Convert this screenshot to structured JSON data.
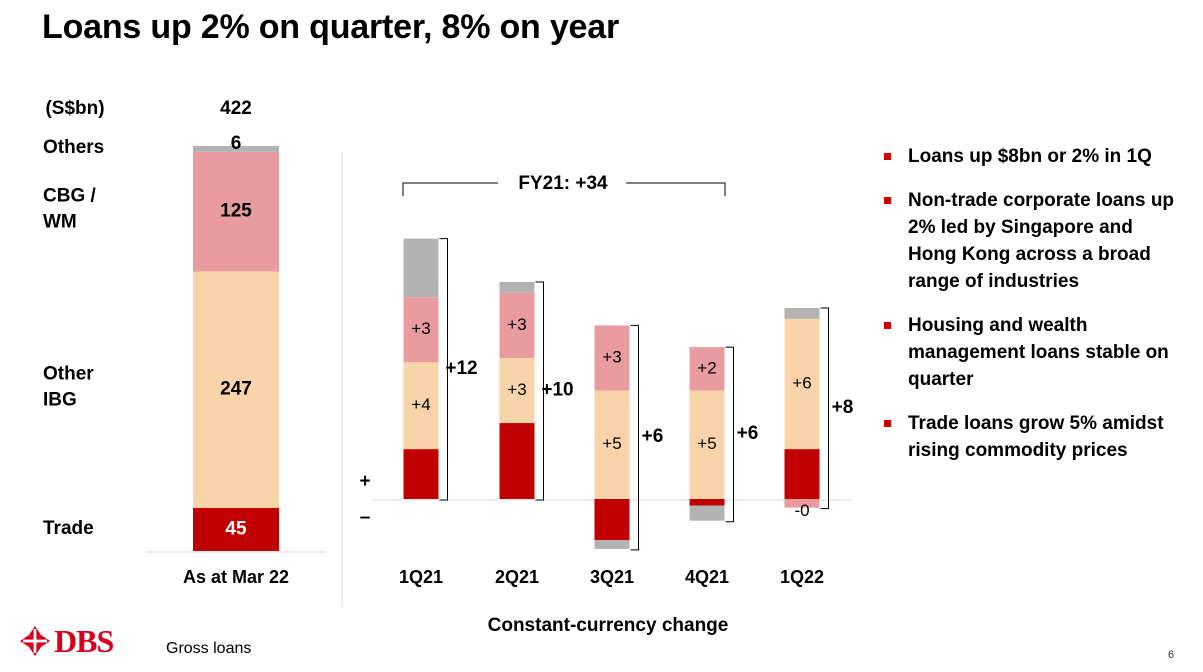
{
  "title": "Loans up 2% on quarter, 8% on year",
  "footer_note": "Gross loans",
  "page_number": "6",
  "logo_text": "DBS",
  "bullets": [
    "Loans up $8bn or 2% in 1Q",
    "Non-trade corporate loans up 2% led by Singapore and Hong Kong across a broad range of industries",
    "Housing and wealth management loans stable on quarter",
    "Trade loans grow 5% amidst rising commodity prices"
  ],
  "colors": {
    "others": "#b3b3b3",
    "cbg_wm": "#e89ca0",
    "other_ibg": "#f9d3aa",
    "trade": "#c00000",
    "bullet": "#cc0000"
  },
  "chart_data": [
    {
      "type": "bar",
      "stacked": true,
      "unit_label": "(S$bn)",
      "category": "As at Mar 22",
      "total": "422",
      "segments": [
        {
          "name": "Trade",
          "value": 45,
          "label": "45"
        },
        {
          "name": "Other IBG",
          "value": 247,
          "label": "247"
        },
        {
          "name": "CBG / WM",
          "value": 125,
          "label": "125"
        },
        {
          "name": "Others",
          "value": 6,
          "label": "6"
        }
      ]
    },
    {
      "type": "bar",
      "stacked": true,
      "xlabel": "Constant-currency change",
      "sign_labels": {
        "plus": "+",
        "minus": "–"
      },
      "bracket_label": "FY21: +34",
      "categories": [
        "1Q21",
        "2Q21",
        "3Q21",
        "4Q21",
        "1Q22"
      ],
      "totals": [
        "+12",
        "+10",
        "+6",
        "+6",
        "+8"
      ],
      "series": [
        {
          "name": "Trade",
          "values": [
            2.3,
            3.5,
            -1.9,
            -0.3,
            2.3
          ],
          "labels": [
            "",
            "",
            "",
            "",
            ""
          ]
        },
        {
          "name": "Other IBG",
          "values": [
            4,
            3,
            5,
            5,
            6
          ],
          "labels": [
            "+4",
            "+3",
            "+5",
            "+5",
            "+6"
          ]
        },
        {
          "name": "CBG / WM",
          "values": [
            3,
            3,
            3,
            2,
            -0.4
          ],
          "labels": [
            "+3",
            "+3",
            "+3",
            "+2",
            "-0"
          ]
        },
        {
          "name": "Others",
          "values": [
            2.7,
            0.5,
            -0.4,
            -0.7,
            0.5
          ],
          "labels": [
            "",
            "",
            "",
            "",
            ""
          ]
        }
      ]
    }
  ]
}
